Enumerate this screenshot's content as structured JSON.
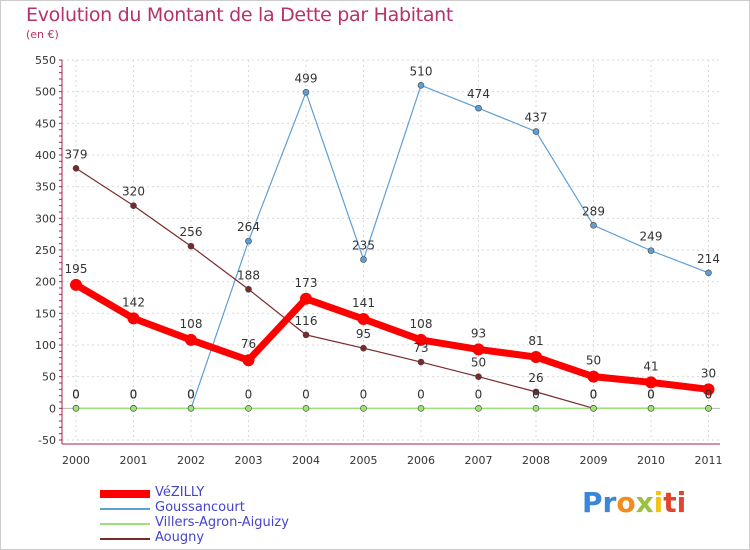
{
  "chart_data": {
    "type": "line",
    "title": "Evolution du Montant de la Dette par Habitant",
    "subtitle": "(en €)",
    "x": [
      "2000",
      "2001",
      "2002",
      "2003",
      "2004",
      "2005",
      "2006",
      "2007",
      "2008",
      "2009",
      "2010",
      "2011"
    ],
    "ylim": [
      -50,
      550
    ],
    "yticks": [
      "-50",
      "0",
      "50",
      "100",
      "150",
      "200",
      "250",
      "300",
      "350",
      "400",
      "450",
      "500",
      "550"
    ],
    "grid": true,
    "legend_position": "bottom-left",
    "series": [
      {
        "name": "VéZILLY",
        "color": "#ff0000",
        "values": [
          195,
          142,
          108,
          76,
          173,
          141,
          108,
          93,
          81,
          50,
          41,
          30
        ]
      },
      {
        "name": "Goussancourt",
        "color": "#5e9fd6",
        "values": [
          0,
          0,
          0,
          264,
          499,
          235,
          510,
          474,
          437,
          289,
          249,
          214
        ]
      },
      {
        "name": "Villers-Agron-Aiguizy",
        "color": "#9fe07a",
        "values": [
          0,
          0,
          0,
          0,
          0,
          0,
          0,
          0,
          0,
          0,
          0,
          0
        ]
      },
      {
        "name": "Aougny",
        "color": "#7a2a2a",
        "values": [
          379,
          320,
          256,
          188,
          116,
          95,
          73,
          50,
          26,
          0,
          0,
          0
        ]
      }
    ]
  },
  "branding": {
    "logo_parts": [
      "Pr",
      "o",
      "x",
      "i",
      "ti"
    ]
  }
}
